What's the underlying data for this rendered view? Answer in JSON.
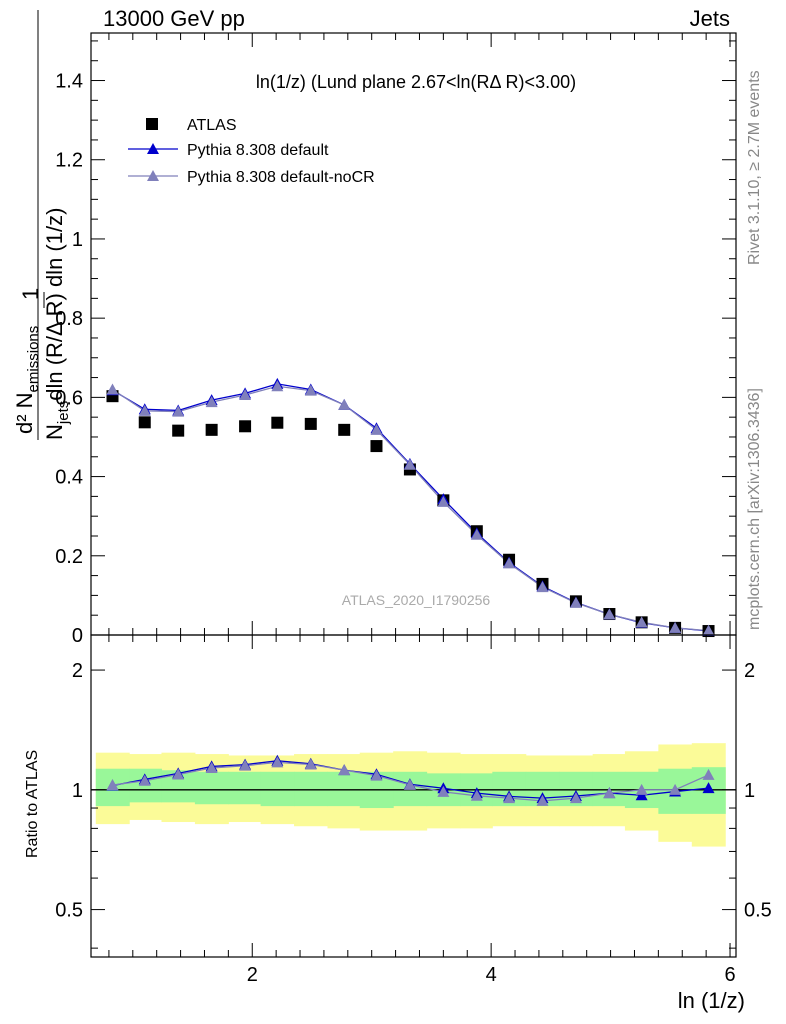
{
  "header": {
    "left": "13000 GeV pp",
    "right": "Jets"
  },
  "side": {
    "rivet": "Rivet 3.1.10, ≥ 2.7M events",
    "mcplots": "mcplots.cern.ch [arXiv:1306.3436]"
  },
  "watermark": "ATLAS_2020_I1790256",
  "colors": {
    "atlas": "#000000",
    "pythia_default": "#0000cc",
    "pythia_nocr": "#8080bb",
    "band_inner": "#99f799",
    "band_outer": "#fbfb98"
  },
  "chart_data": [
    {
      "type": "scatter",
      "title": "ln(1/z) (Lund plane 2.67<ln(RΔ R)<3.00)",
      "xlabel": "ln (1/z)",
      "ylabel": "1/N_jets dln (R/Δ R) dln (1/z) d² N_emissions",
      "xlim": [
        0.65,
        6.05
      ],
      "ylim": [
        0,
        1.52
      ],
      "yticks": [
        "0",
        "0.2",
        "0.4",
        "0.6",
        "0.8",
        "1",
        "1.2",
        "1.4"
      ],
      "x": [
        0.83,
        1.1,
        1.38,
        1.66,
        1.94,
        2.21,
        2.49,
        2.77,
        3.04,
        3.32,
        3.6,
        3.88,
        4.15,
        4.43,
        4.71,
        4.99,
        5.26,
        5.54,
        5.82
      ],
      "series": [
        {
          "name": "ATLAS",
          "values": [
            0.603,
            0.537,
            0.516,
            0.518,
            0.527,
            0.536,
            0.533,
            0.518,
            0.477,
            0.418,
            0.34,
            0.262,
            0.19,
            0.129,
            0.085,
            0.053,
            0.032,
            0.018,
            0.01
          ]
        },
        {
          "name": "Pythia 8.308 default",
          "values": [
            0.618,
            0.57,
            0.567,
            0.593,
            0.61,
            0.634,
            0.62,
            0.581,
            0.522,
            0.432,
            0.343,
            0.257,
            0.183,
            0.123,
            0.082,
            0.052,
            0.031,
            0.018,
            0.01
          ]
        },
        {
          "name": "Pythia 8.308 default-noCR",
          "values": [
            0.62,
            0.566,
            0.564,
            0.588,
            0.606,
            0.628,
            0.617,
            0.581,
            0.518,
            0.43,
            0.336,
            0.253,
            0.181,
            0.121,
            0.081,
            0.052,
            0.032,
            0.018,
            0.011
          ]
        }
      ]
    },
    {
      "type": "line",
      "xlabel": "ln (1/z)",
      "ylabel": "Ratio to ATLAS",
      "xlim": [
        0.65,
        6.05
      ],
      "ylim": [
        0.38,
        2.45
      ],
      "log_y": true,
      "xticks": [
        "2",
        "4",
        "6"
      ],
      "yticks": [
        "0.5",
        "1",
        "2"
      ],
      "x": [
        0.83,
        1.1,
        1.38,
        1.66,
        1.94,
        2.21,
        2.49,
        2.77,
        3.04,
        3.32,
        3.6,
        3.88,
        4.15,
        4.43,
        4.71,
        4.99,
        5.26,
        5.54,
        5.82
      ],
      "bin_edges": [
        0.69,
        0.97,
        1.24,
        1.52,
        1.8,
        2.07,
        2.35,
        2.63,
        2.9,
        3.18,
        3.46,
        3.74,
        4.01,
        4.29,
        4.57,
        4.85,
        5.12,
        5.4,
        5.68,
        5.96
      ],
      "band_inner": [
        [
          0.91,
          1.13
        ],
        [
          0.93,
          1.13
        ],
        [
          0.93,
          1.12
        ],
        [
          0.92,
          1.11
        ],
        [
          0.92,
          1.11
        ],
        [
          0.91,
          1.11
        ],
        [
          0.91,
          1.11
        ],
        [
          0.91,
          1.11
        ],
        [
          0.9,
          1.11
        ],
        [
          0.91,
          1.11
        ],
        [
          0.91,
          1.1
        ],
        [
          0.91,
          1.1
        ],
        [
          0.91,
          1.11
        ],
        [
          0.91,
          1.11
        ],
        [
          0.91,
          1.11
        ],
        [
          0.91,
          1.11
        ],
        [
          0.9,
          1.11
        ],
        [
          0.87,
          1.13
        ],
        [
          0.87,
          1.14
        ]
      ],
      "band_outer": [
        [
          0.82,
          1.24
        ],
        [
          0.84,
          1.23
        ],
        [
          0.83,
          1.24
        ],
        [
          0.82,
          1.23
        ],
        [
          0.83,
          1.22
        ],
        [
          0.82,
          1.22
        ],
        [
          0.81,
          1.23
        ],
        [
          0.8,
          1.23
        ],
        [
          0.79,
          1.24
        ],
        [
          0.79,
          1.25
        ],
        [
          0.8,
          1.24
        ],
        [
          0.8,
          1.23
        ],
        [
          0.81,
          1.23
        ],
        [
          0.81,
          1.22
        ],
        [
          0.81,
          1.22
        ],
        [
          0.81,
          1.23
        ],
        [
          0.79,
          1.25
        ],
        [
          0.74,
          1.3
        ],
        [
          0.72,
          1.31
        ]
      ],
      "series": [
        {
          "name": "Pythia 8.308 default",
          "values": [
            1.025,
            1.062,
            1.1,
            1.145,
            1.157,
            1.183,
            1.163,
            1.121,
            1.094,
            1.033,
            1.009,
            0.981,
            0.963,
            0.953,
            0.965,
            0.981,
            0.969,
            0.99,
            1.01
          ]
        },
        {
          "name": "Pythia 8.308 default-noCR",
          "values": [
            1.028,
            1.054,
            1.093,
            1.135,
            1.15,
            1.172,
            1.158,
            1.121,
            1.086,
            1.029,
            0.988,
            0.966,
            0.953,
            0.938,
            0.953,
            0.981,
            1.0,
            1.0,
            1.09
          ]
        }
      ]
    }
  ]
}
